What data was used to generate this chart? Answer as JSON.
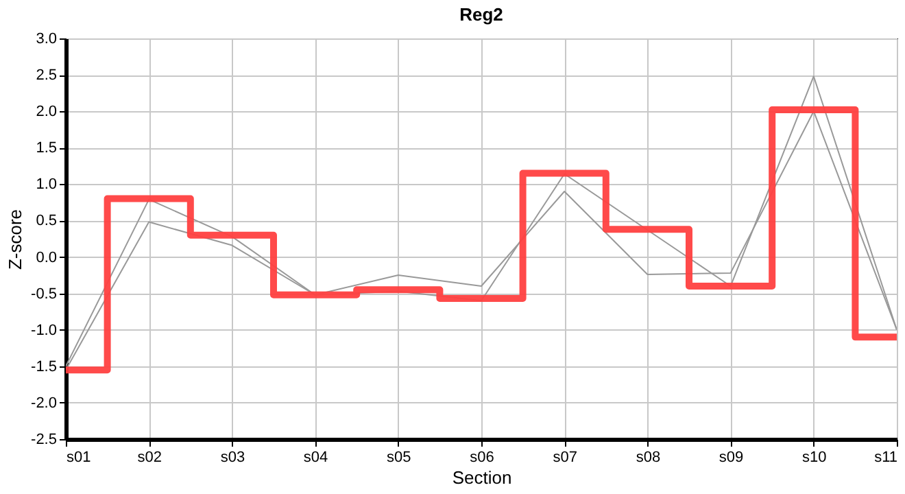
{
  "chart_data": {
    "type": "line",
    "title": "Reg2",
    "xlabel": "Section",
    "ylabel": "Z-score",
    "categories": [
      "s01",
      "s02",
      "s03",
      "s04",
      "s05",
      "s06",
      "s07",
      "s08",
      "s09",
      "s10",
      "s11"
    ],
    "series": [
      {
        "color": "#999999",
        "values": [
          -1.5,
          0.79,
          0.28,
          -0.52,
          -0.25,
          -0.4,
          0.9,
          -0.24,
          -0.22,
          2.0,
          -1.0
        ]
      },
      {
        "color": "#999999",
        "values": [
          -1.55,
          0.48,
          0.16,
          -0.52,
          -0.47,
          -0.6,
          1.14,
          0.37,
          -0.4,
          2.48,
          -1.0
        ]
      },
      {
        "type": "step",
        "color": "#ff4040",
        "values": [
          -1.55,
          0.8,
          0.3,
          -0.52,
          -0.45,
          -0.57,
          1.15,
          0.38,
          -0.4,
          2.02,
          -1.1
        ]
      }
    ],
    "ylim": [
      -2.5,
      3.0
    ],
    "yticks": [
      {
        "value": -2.5,
        "label": "-2.5"
      },
      {
        "value": -2,
        "label": "-2.0"
      },
      {
        "value": -1.5,
        "label": "-1.5"
      },
      {
        "value": -1,
        "label": "-1.0"
      },
      {
        "value": -0.5,
        "label": "-0.5"
      },
      {
        "value": 0,
        "label": "0.0"
      },
      {
        "value": 0.5,
        "label": "0.5"
      },
      {
        "value": 1,
        "label": "1.0"
      },
      {
        "value": 1.5,
        "label": "1.5"
      },
      {
        "value": 2,
        "label": "2.0"
      },
      {
        "value": 2.5,
        "label": "2.5"
      },
      {
        "value": 3,
        "label": "3.0"
      }
    ],
    "grid": true
  }
}
